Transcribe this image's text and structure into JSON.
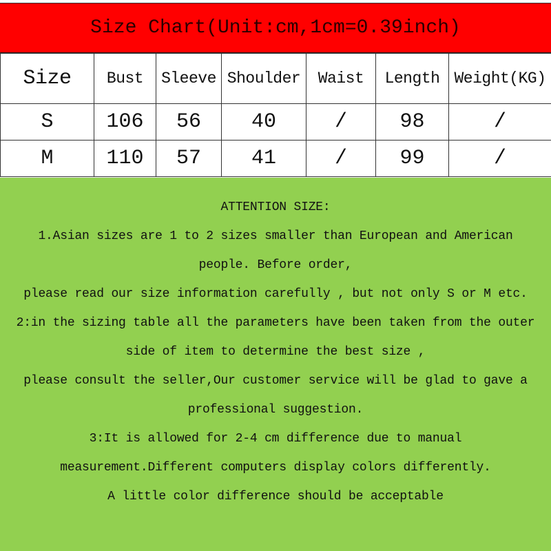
{
  "title": "Size Chart(Unit:cm,1cm=0.39inch)",
  "table": {
    "headers": [
      "Size",
      "Bust",
      "Sleeve",
      "Shoulder",
      "Waist",
      "Length",
      "Weight(KG)"
    ],
    "rows": [
      [
        "S",
        "106",
        "56",
        "40",
        "/",
        "98",
        "/"
      ],
      [
        "M",
        "110",
        "57",
        "41",
        "/",
        "99",
        "/"
      ]
    ]
  },
  "notes": {
    "heading": "ATTENTION SIZE:",
    "lines": [
      "1.Asian sizes are 1 to 2 sizes smaller than European and American",
      "people. Before order,",
      "please read our size information carefully , but not only S or M etc.",
      "2:in the sizing table all the parameters have been taken from the outer",
      "side of item to determine the best size ,",
      "please consult the seller,Our customer service will be glad to gave a",
      "professional suggestion.",
      "3:It is allowed for 2-4 cm difference due to manual",
      "measurement.Different computers display colors differently.",
      "A little color difference should be acceptable"
    ]
  },
  "colors": {
    "title_bg": "#ff0000",
    "notes_bg": "#92d050"
  }
}
